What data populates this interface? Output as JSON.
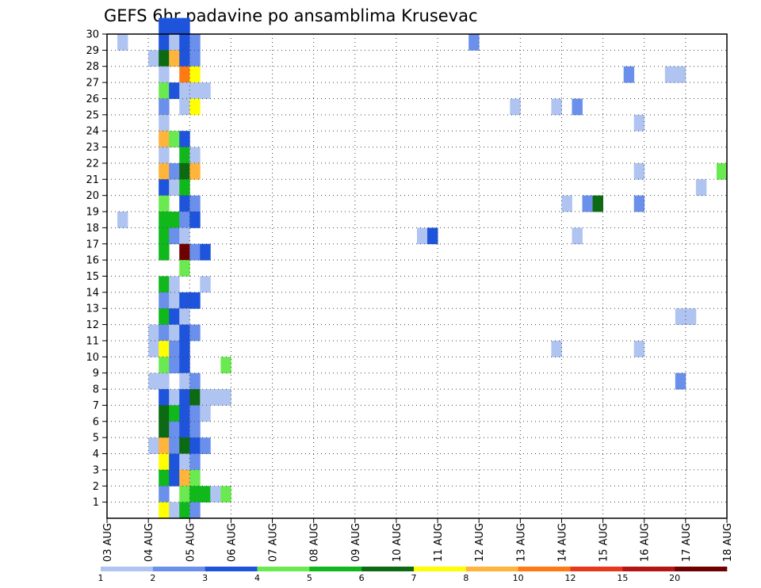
{
  "chart_data": {
    "type": "heatmap",
    "title": "GEFS 6hr padavine po ansamblima Krusevac",
    "x_tick_labels": [
      "03 AUG",
      "04 AUG",
      "05 AUG",
      "06 AUG",
      "07 AUG",
      "08 AUG",
      "09 AUG",
      "10 AUG",
      "11 AUG",
      "12 AUG",
      "13 AUG",
      "14 AUG",
      "15 AUG",
      "16 AUG",
      "17 AUG",
      "18 AUG"
    ],
    "y_range": [
      0,
      30
    ],
    "y_ticks": [
      1,
      2,
      3,
      4,
      5,
      6,
      7,
      8,
      9,
      10,
      11,
      12,
      13,
      14,
      15,
      16,
      17,
      18,
      19,
      20,
      21,
      22,
      23,
      24,
      25,
      26,
      27,
      28,
      29,
      30
    ],
    "grid": true,
    "legend": {
      "placement": "bottom",
      "colors": [
        "#b0c4f2",
        "#6a90ec",
        "#1e54dc",
        "#6aea50",
        "#11b81c",
        "#0c6a12",
        "#ffff00",
        "#ffb43c",
        "#ff7a14",
        "#e8381c",
        "#b41414",
        "#6e0000"
      ],
      "labels": [
        "1",
        "2",
        "3",
        "4",
        "5",
        "6",
        "7",
        "8",
        "10",
        "12",
        "15",
        "20"
      ]
    },
    "cells": [
      {
        "t": 1,
        "m": 29,
        "c": 0
      },
      {
        "t": 1,
        "m": 18,
        "c": 0
      },
      {
        "t": 5,
        "m": 30,
        "c": 2
      },
      {
        "t": 6,
        "m": 30,
        "c": 2
      },
      {
        "t": 7,
        "m": 30,
        "c": 2
      },
      {
        "t": 5,
        "m": 29,
        "c": 2
      },
      {
        "t": 6,
        "m": 29,
        "c": 0
      },
      {
        "t": 7,
        "m": 29,
        "c": 2
      },
      {
        "t": 8,
        "m": 29,
        "c": 1
      },
      {
        "t": 4,
        "m": 28,
        "c": 0
      },
      {
        "t": 5,
        "m": 28,
        "c": 5
      },
      {
        "t": 6,
        "m": 28,
        "c": 7
      },
      {
        "t": 7,
        "m": 28,
        "c": 2
      },
      {
        "t": 8,
        "m": 28,
        "c": 1
      },
      {
        "t": 5,
        "m": 27,
        "c": 0
      },
      {
        "t": 7,
        "m": 27,
        "c": 8
      },
      {
        "t": 8,
        "m": 27,
        "c": 6
      },
      {
        "t": 5,
        "m": 26,
        "c": 3
      },
      {
        "t": 6,
        "m": 26,
        "c": 2
      },
      {
        "t": 7,
        "m": 26,
        "c": 0
      },
      {
        "t": 8,
        "m": 26,
        "c": 0
      },
      {
        "t": 9,
        "m": 26,
        "c": 0
      },
      {
        "t": 5,
        "m": 25,
        "c": 1
      },
      {
        "t": 7,
        "m": 25,
        "c": 0
      },
      {
        "t": 8,
        "m": 25,
        "c": 6
      },
      {
        "t": 5,
        "m": 24,
        "c": 0
      },
      {
        "t": 5,
        "m": 23,
        "c": 7
      },
      {
        "t": 6,
        "m": 23,
        "c": 3
      },
      {
        "t": 7,
        "m": 23,
        "c": 2
      },
      {
        "t": 5,
        "m": 22,
        "c": 0
      },
      {
        "t": 7,
        "m": 22,
        "c": 4
      },
      {
        "t": 8,
        "m": 22,
        "c": 0
      },
      {
        "t": 5,
        "m": 21,
        "c": 7
      },
      {
        "t": 6,
        "m": 21,
        "c": 1
      },
      {
        "t": 7,
        "m": 21,
        "c": 5
      },
      {
        "t": 8,
        "m": 21,
        "c": 7
      },
      {
        "t": 5,
        "m": 20,
        "c": 2
      },
      {
        "t": 6,
        "m": 20,
        "c": 0
      },
      {
        "t": 7,
        "m": 20,
        "c": 4
      },
      {
        "t": 5,
        "m": 19,
        "c": 3
      },
      {
        "t": 7,
        "m": 19,
        "c": 2
      },
      {
        "t": 8,
        "m": 19,
        "c": 1
      },
      {
        "t": 5,
        "m": 18,
        "c": 4
      },
      {
        "t": 6,
        "m": 18,
        "c": 4
      },
      {
        "t": 7,
        "m": 18,
        "c": 1
      },
      {
        "t": 8,
        "m": 18,
        "c": 2
      },
      {
        "t": 5,
        "m": 17,
        "c": 4
      },
      {
        "t": 6,
        "m": 17,
        "c": 1
      },
      {
        "t": 7,
        "m": 17,
        "c": 0
      },
      {
        "t": 5,
        "m": 16,
        "c": 4
      },
      {
        "t": 7,
        "m": 16,
        "c": 11
      },
      {
        "t": 8,
        "m": 16,
        "c": 1
      },
      {
        "t": 9,
        "m": 16,
        "c": 2
      },
      {
        "t": 7,
        "m": 15,
        "c": 3
      },
      {
        "t": 5,
        "m": 14,
        "c": 4
      },
      {
        "t": 6,
        "m": 14,
        "c": 0
      },
      {
        "t": 9,
        "m": 14,
        "c": 0
      },
      {
        "t": 5,
        "m": 13,
        "c": 1
      },
      {
        "t": 6,
        "m": 13,
        "c": 0
      },
      {
        "t": 7,
        "m": 13,
        "c": 2
      },
      {
        "t": 8,
        "m": 13,
        "c": 2
      },
      {
        "t": 5,
        "m": 12,
        "c": 4
      },
      {
        "t": 6,
        "m": 12,
        "c": 2
      },
      {
        "t": 7,
        "m": 12,
        "c": 0
      },
      {
        "t": 4,
        "m": 11,
        "c": 0
      },
      {
        "t": 5,
        "m": 11,
        "c": 1
      },
      {
        "t": 6,
        "m": 11,
        "c": 0
      },
      {
        "t": 7,
        "m": 11,
        "c": 2
      },
      {
        "t": 8,
        "m": 11,
        "c": 1
      },
      {
        "t": 4,
        "m": 10,
        "c": 0
      },
      {
        "t": 5,
        "m": 10,
        "c": 6
      },
      {
        "t": 6,
        "m": 10,
        "c": 1
      },
      {
        "t": 7,
        "m": 10,
        "c": 2
      },
      {
        "t": 5,
        "m": 9,
        "c": 3
      },
      {
        "t": 6,
        "m": 9,
        "c": 1
      },
      {
        "t": 7,
        "m": 9,
        "c": 2
      },
      {
        "t": 4,
        "m": 8,
        "c": 0
      },
      {
        "t": 5,
        "m": 8,
        "c": 0
      },
      {
        "t": 7,
        "m": 8,
        "c": 0
      },
      {
        "t": 8,
        "m": 8,
        "c": 1
      },
      {
        "t": 5,
        "m": 7,
        "c": 2
      },
      {
        "t": 6,
        "m": 7,
        "c": 0
      },
      {
        "t": 7,
        "m": 7,
        "c": 2
      },
      {
        "t": 8,
        "m": 7,
        "c": 5
      },
      {
        "t": 9,
        "m": 7,
        "c": 0
      },
      {
        "t": 5,
        "m": 6,
        "c": 5
      },
      {
        "t": 6,
        "m": 6,
        "c": 4
      },
      {
        "t": 7,
        "m": 6,
        "c": 2
      },
      {
        "t": 8,
        "m": 6,
        "c": 1
      },
      {
        "t": 9,
        "m": 6,
        "c": 0
      },
      {
        "t": 5,
        "m": 5,
        "c": 5
      },
      {
        "t": 6,
        "m": 5,
        "c": 1
      },
      {
        "t": 7,
        "m": 5,
        "c": 2
      },
      {
        "t": 8,
        "m": 5,
        "c": 1
      },
      {
        "t": 4,
        "m": 4,
        "c": 0
      },
      {
        "t": 5,
        "m": 4,
        "c": 7
      },
      {
        "t": 6,
        "m": 4,
        "c": 1
      },
      {
        "t": 7,
        "m": 4,
        "c": 5
      },
      {
        "t": 8,
        "m": 4,
        "c": 2
      },
      {
        "t": 9,
        "m": 4,
        "c": 1
      },
      {
        "t": 5,
        "m": 3,
        "c": 6
      },
      {
        "t": 6,
        "m": 3,
        "c": 2
      },
      {
        "t": 7,
        "m": 3,
        "c": 0
      },
      {
        "t": 8,
        "m": 3,
        "c": 1
      },
      {
        "t": 5,
        "m": 2,
        "c": 4
      },
      {
        "t": 6,
        "m": 2,
        "c": 2
      },
      {
        "t": 7,
        "m": 2,
        "c": 7
      },
      {
        "t": 8,
        "m": 2,
        "c": 3
      },
      {
        "t": 5,
        "m": 1,
        "c": 1
      },
      {
        "t": 7,
        "m": 1,
        "c": 3
      },
      {
        "t": 8,
        "m": 1,
        "c": 4
      },
      {
        "t": 9,
        "m": 1,
        "c": 4
      },
      {
        "t": 10,
        "m": 1,
        "c": 0
      },
      {
        "t": 11,
        "m": 1,
        "c": 3
      },
      {
        "t": 5,
        "m": 0,
        "c": 6
      },
      {
        "t": 6,
        "m": 0,
        "c": 0
      },
      {
        "t": 7,
        "m": 0,
        "c": 4
      },
      {
        "t": 8,
        "m": 0,
        "c": 1
      },
      {
        "t": 11,
        "m": 9,
        "c": 3
      },
      {
        "t": 10,
        "m": 7,
        "c": 0
      },
      {
        "t": 11,
        "m": 7,
        "c": 0
      },
      {
        "t": 30,
        "m": 17,
        "c": 0
      },
      {
        "t": 31,
        "m": 17,
        "c": 2
      },
      {
        "t": 35,
        "m": 29,
        "c": 1
      },
      {
        "t": 39,
        "m": 25,
        "c": 0
      },
      {
        "t": 43,
        "m": 25,
        "c": 0
      },
      {
        "t": 45,
        "m": 25,
        "c": 1
      },
      {
        "t": 44,
        "m": 19,
        "c": 0
      },
      {
        "t": 46,
        "m": 19,
        "c": 1
      },
      {
        "t": 47,
        "m": 19,
        "c": 5
      },
      {
        "t": 45,
        "m": 17,
        "c": 0
      },
      {
        "t": 43,
        "m": 10,
        "c": 0
      },
      {
        "t": 50,
        "m": 27,
        "c": 1
      },
      {
        "t": 51,
        "m": 24,
        "c": 0
      },
      {
        "t": 51,
        "m": 21,
        "c": 0
      },
      {
        "t": 51,
        "m": 19,
        "c": 1
      },
      {
        "t": 51,
        "m": 10,
        "c": 0
      },
      {
        "t": 54,
        "m": 27,
        "c": 0
      },
      {
        "t": 55,
        "m": 27,
        "c": 0
      },
      {
        "t": 55,
        "m": 12,
        "c": 0
      },
      {
        "t": 56,
        "m": 12,
        "c": 0
      },
      {
        "t": 55,
        "m": 8,
        "c": 1
      },
      {
        "t": 57,
        "m": 20,
        "c": 0
      },
      {
        "t": 59,
        "m": 21,
        "c": 3
      }
    ]
  }
}
